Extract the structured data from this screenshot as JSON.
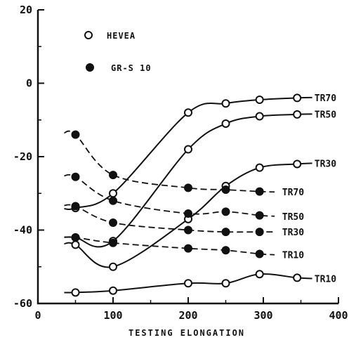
{
  "chart_data": {
    "type": "line",
    "title": "",
    "xlabel": "TESTING ELONGATION",
    "ylabel": "",
    "xlim": [
      0,
      400
    ],
    "ylim": [
      -60,
      20
    ],
    "x_ticks": [
      "0",
      "100",
      "200",
      "300",
      "400"
    ],
    "y_ticks": [
      "20",
      "0",
      "-20",
      "-40",
      "-60"
    ],
    "legend": {
      "position": "top-left",
      "entries": [
        {
          "label": "HEVEA",
          "marker": "open-circle"
        },
        {
          "label": "GR-S 10",
          "marker": "filled-circle"
        }
      ]
    },
    "series": [
      {
        "name": "TR70",
        "material": "HEVEA",
        "line": "solid",
        "marker": "open",
        "x": [
          50,
          100,
          200,
          250,
          295,
          345
        ],
        "y": [
          -34,
          -30,
          -8,
          -5.5,
          -4.5,
          -4
        ]
      },
      {
        "name": "TR50",
        "material": "HEVEA",
        "line": "solid",
        "marker": "open",
        "x": [
          50,
          100,
          200,
          250,
          295,
          345
        ],
        "y": [
          -42,
          -43,
          -18,
          -11,
          -9,
          -8.5
        ]
      },
      {
        "name": "TR30",
        "material": "HEVEA",
        "line": "solid",
        "marker": "open",
        "x": [
          50,
          100,
          200,
          250,
          295,
          345
        ],
        "y": [
          -44,
          -50,
          -37,
          -28,
          -23,
          -22
        ]
      },
      {
        "name": "TR10",
        "material": "HEVEA",
        "line": "solid",
        "marker": "open",
        "x": [
          50,
          100,
          200,
          250,
          295,
          345
        ],
        "y": [
          -57,
          -56.5,
          -54.5,
          -54.5,
          -52,
          -53
        ]
      },
      {
        "name": "TR70",
        "material": "GR-S 10",
        "line": "dashed",
        "marker": "filled",
        "x": [
          50,
          100,
          200,
          250,
          295
        ],
        "y": [
          -14,
          -25,
          -28.5,
          -29,
          -29.5
        ]
      },
      {
        "name": "TR50",
        "material": "GR-S 10",
        "line": "dashed",
        "marker": "filled",
        "x": [
          50,
          100,
          200,
          250,
          295
        ],
        "y": [
          -25.5,
          -32,
          -35.5,
          -35,
          -36
        ]
      },
      {
        "name": "TR30",
        "material": "GR-S 10",
        "line": "dashed",
        "marker": "filled",
        "x": [
          50,
          100,
          200,
          250,
          295
        ],
        "y": [
          -33.5,
          -38,
          -40,
          -40.5,
          -40.5
        ]
      },
      {
        "name": "TR10",
        "material": "GR-S 10",
        "line": "dashed",
        "marker": "filled",
        "x": [
          50,
          100,
          200,
          250,
          295
        ],
        "y": [
          -42,
          -43.5,
          -45,
          -45.5,
          -46.5
        ]
      }
    ]
  }
}
